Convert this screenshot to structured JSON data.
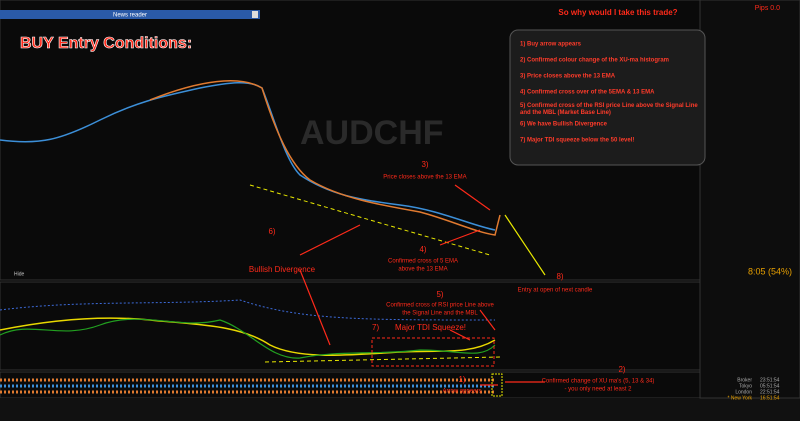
{
  "toolbar": {
    "news_reader": "News reader"
  },
  "heading": "BUY Entry Conditions:",
  "question": "So why would I take this trade?",
  "conditions": [
    "1) Buy arrow appears",
    "2) Confirmed colour change of the XU-ma histogram",
    "3) Price closes above the 13 EMA",
    "4) Confirmed cross over of the 5EMA & 13 EMA",
    "5) Confirmed cross of the RSI price Line above the Signal Line and the MBL (Market Base Line)",
    "6) We have Bullish Divergence",
    "7) Major TDI squeeze below the 50 level!"
  ],
  "watermark": "AUDCHF",
  "pips": "Pips 0.0",
  "timer": "8:05 (54%)",
  "hide": "Hide",
  "annotations": [
    {
      "number": "3)",
      "lines": [
        "Price closes above the 13 EMA"
      ]
    },
    {
      "number": "4)",
      "lines": [
        "Confirmed cross of 5 EMA",
        "above the 13 EMA"
      ]
    },
    {
      "number": "6)",
      "lines": [
        "Bullish Divergence"
      ]
    },
    {
      "number": "5)",
      "lines": [
        "Confirmed cross of RSI price Line above",
        "the Signal Line and the MBL"
      ]
    },
    {
      "number": "7)",
      "lines": [
        "Major TDI Squeeze!"
      ]
    },
    {
      "number": "8)",
      "lines": [
        "Entry at open of next candle"
      ]
    },
    {
      "number": "1)",
      "lines": [
        "Arrow appears"
      ]
    },
    {
      "number": "2)",
      "lines": [
        "Confirmed change of XU ma's (5, 13 & 34)",
        "- you only need at least 2"
      ]
    }
  ],
  "sessions": [
    {
      "name": "Broker",
      "time": "23:51:54"
    },
    {
      "name": "Tokyo",
      "time": "05:51:54"
    },
    {
      "name": "London",
      "time": "22:51:54"
    },
    {
      "name": "* New York",
      "time": "16:51:54"
    }
  ]
}
